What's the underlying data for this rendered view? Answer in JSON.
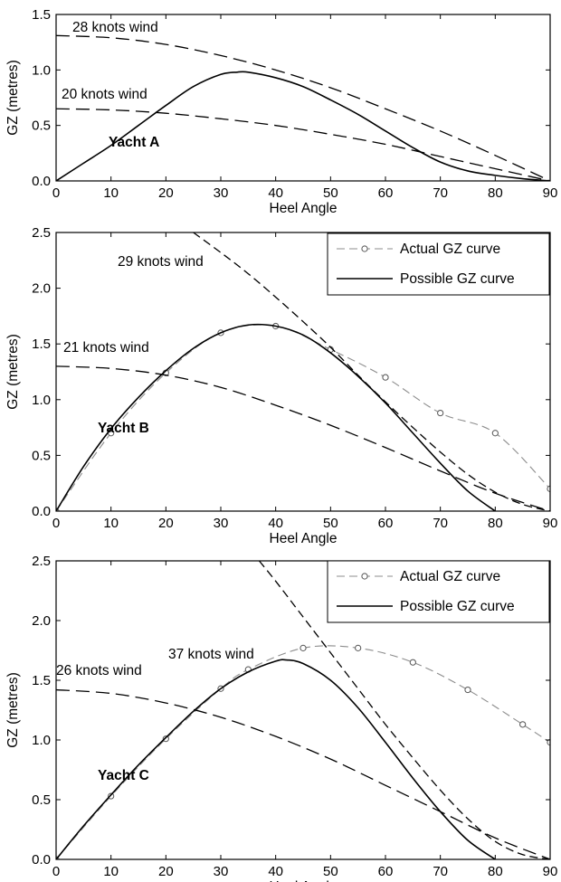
{
  "chart_data": [
    {
      "type": "line",
      "xlabel": "Heel Angle",
      "ylabel": "GZ (metres)",
      "xlim": [
        0,
        90
      ],
      "ylim": [
        0,
        1.5
      ],
      "xticks": [
        0,
        10,
        20,
        30,
        40,
        50,
        60,
        70,
        80,
        90
      ],
      "yticks": [
        0.0,
        0.5,
        1.0,
        1.5
      ],
      "ytick_labels": [
        "0.0",
        "0.5",
        "1.0",
        "1.5"
      ],
      "yacht_label": "Yacht A",
      "legend": [],
      "series": [
        {
          "name": "Possible GZ curve",
          "style": "solid",
          "x": [
            0,
            5,
            10,
            15,
            20,
            25,
            30,
            33,
            35,
            40,
            45,
            50,
            55,
            60,
            65,
            70,
            75,
            80,
            85,
            90
          ],
          "y": [
            0,
            0.16,
            0.32,
            0.5,
            0.68,
            0.85,
            0.96,
            0.98,
            0.98,
            0.93,
            0.85,
            0.73,
            0.6,
            0.45,
            0.3,
            0.17,
            0.09,
            0.05,
            0.02,
            0
          ]
        },
        {
          "style": "long-dash",
          "x": [
            0,
            10,
            20,
            30,
            40,
            50,
            60,
            70,
            80,
            90
          ],
          "y": [
            1.31,
            1.29,
            1.23,
            1.13,
            1.0,
            0.84,
            0.65,
            0.45,
            0.23,
            0
          ]
        },
        {
          "style": "long-dash",
          "x": [
            0,
            10,
            20,
            30,
            40,
            50,
            60,
            70,
            80,
            90
          ],
          "y": [
            0.65,
            0.64,
            0.61,
            0.56,
            0.5,
            0.42,
            0.33,
            0.22,
            0.11,
            0
          ]
        }
      ],
      "annotations": [
        {
          "text": "28 knots wind",
          "x": 22,
          "y": 1.38
        },
        {
          "text": "20 knots wind",
          "x": 19,
          "y": 0.72
        }
      ]
    },
    {
      "type": "line",
      "xlabel": "Heel Angle",
      "ylabel": "GZ (metres)",
      "xlim": [
        0,
        90
      ],
      "ylim": [
        0,
        2.5
      ],
      "xticks": [
        0,
        10,
        20,
        30,
        40,
        50,
        60,
        70,
        80,
        90
      ],
      "yticks": [
        0.0,
        0.5,
        1.0,
        1.5,
        2.0,
        2.5
      ],
      "ytick_labels": [
        "0.0",
        "0.5",
        "1.0",
        "1.5",
        "2.0",
        "2.5"
      ],
      "yacht_label": "Yacht B",
      "legend": [
        {
          "label": "Actual GZ curve",
          "style": "gray-dash-circle"
        },
        {
          "label": "Possible GZ curve",
          "style": "solid"
        }
      ],
      "series": [
        {
          "name": "Actual GZ curve",
          "style": "gray-dash-circle",
          "x": [
            0,
            10,
            20,
            30,
            40,
            50,
            60,
            70,
            80,
            90
          ],
          "y": [
            0,
            0.7,
            1.24,
            1.6,
            1.66,
            1.45,
            1.2,
            0.88,
            0.7,
            0.2
          ]
        },
        {
          "name": "Possible GZ curve",
          "style": "solid",
          "x": [
            0,
            5,
            10,
            15,
            20,
            25,
            30,
            35,
            40,
            45,
            50,
            55,
            60,
            65,
            70,
            75,
            80
          ],
          "y": [
            0,
            0.4,
            0.74,
            1.02,
            1.26,
            1.46,
            1.6,
            1.67,
            1.66,
            1.58,
            1.42,
            1.21,
            0.97,
            0.7,
            0.43,
            0.18,
            0
          ]
        },
        {
          "style": "dash",
          "x": [
            25,
            30,
            35,
            40,
            45,
            50,
            55,
            60,
            65,
            70,
            75,
            80,
            85,
            90
          ],
          "y": [
            2.5,
            2.32,
            2.13,
            1.92,
            1.7,
            1.47,
            1.22,
            0.98,
            0.75,
            0.53,
            0.33,
            0.17,
            0.06,
            0
          ]
        },
        {
          "style": "long-dash",
          "x": [
            0,
            10,
            20,
            30,
            40,
            50,
            60,
            70,
            80,
            90
          ],
          "y": [
            1.3,
            1.28,
            1.22,
            1.11,
            0.95,
            0.77,
            0.57,
            0.36,
            0.16,
            0
          ]
        }
      ],
      "annotations": [
        {
          "text": "29 knots wind",
          "x": 32,
          "y": 2.25
        },
        {
          "text": "21 knots wind",
          "x": 20,
          "y": 1.35
        }
      ]
    },
    {
      "type": "line",
      "xlabel": "Heel Angle",
      "ylabel": "GZ (metres)",
      "xlim": [
        0,
        90
      ],
      "ylim": [
        0,
        2.5
      ],
      "xticks": [
        0,
        10,
        20,
        30,
        40,
        50,
        60,
        70,
        80,
        90
      ],
      "yticks": [
        0.0,
        0.5,
        1.0,
        1.5,
        2.0,
        2.5
      ],
      "ytick_labels": [
        "0.0",
        "0.5",
        "1.0",
        "1.5",
        "2.0",
        "2.5"
      ],
      "yacht_label": "Yacht C",
      "legend": [
        {
          "label": "Actual GZ curve",
          "style": "gray-dash-circle"
        },
        {
          "label": "Possible GZ curve",
          "style": "solid"
        }
      ],
      "series": [
        {
          "name": "Actual GZ curve",
          "style": "gray-dash-circle",
          "x": [
            0,
            10,
            20,
            30,
            35,
            45,
            55,
            65,
            75,
            85,
            90
          ],
          "y": [
            0,
            0.53,
            1.01,
            1.43,
            1.59,
            1.77,
            1.77,
            1.65,
            1.42,
            1.13,
            0.98
          ]
        },
        {
          "name": "Possible GZ curve",
          "style": "solid",
          "x": [
            0,
            5,
            10,
            15,
            20,
            25,
            30,
            35,
            40,
            42,
            45,
            50,
            55,
            60,
            65,
            70,
            75,
            80
          ],
          "y": [
            0,
            0.28,
            0.54,
            0.79,
            1.02,
            1.24,
            1.43,
            1.57,
            1.66,
            1.67,
            1.64,
            1.5,
            1.27,
            0.98,
            0.68,
            0.4,
            0.16,
            0
          ]
        },
        {
          "style": "dash",
          "x": [
            37,
            40,
            45,
            50,
            55,
            60,
            65,
            70,
            75,
            80,
            85,
            90
          ],
          "y": [
            2.5,
            2.33,
            2.03,
            1.73,
            1.43,
            1.13,
            0.85,
            0.58,
            0.34,
            0.15,
            0.04,
            0
          ]
        },
        {
          "style": "long-dash",
          "x": [
            0,
            10,
            20,
            30,
            40,
            50,
            60,
            70,
            80,
            90
          ],
          "y": [
            1.42,
            1.39,
            1.31,
            1.19,
            1.03,
            0.84,
            0.62,
            0.4,
            0.18,
            0
          ]
        }
      ],
      "annotations": [
        {
          "text": "37 knots wind",
          "x": 40,
          "y": 2.0
        },
        {
          "text": "26 knots wind",
          "x": 16,
          "y": 1.5
        }
      ]
    }
  ]
}
